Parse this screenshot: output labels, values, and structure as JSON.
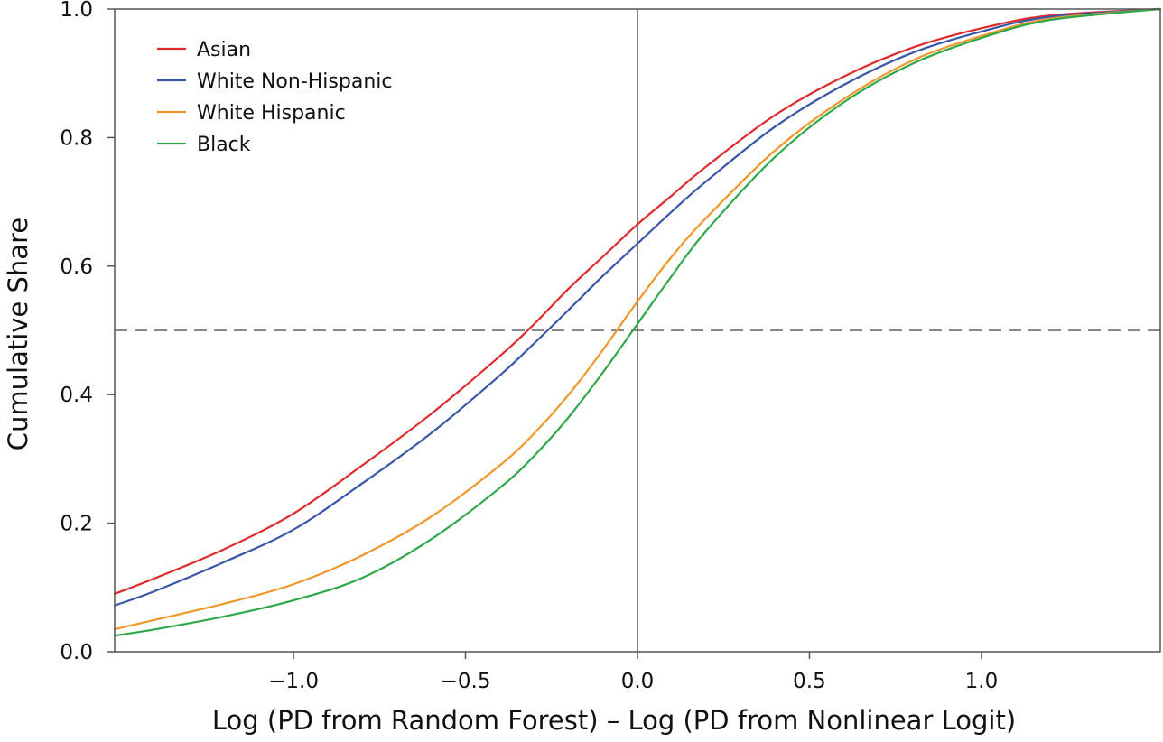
{
  "chart_data": {
    "type": "line",
    "title": "",
    "xlabel": "Log (PD from Random Forest) – Log (PD from Nonlinear Logit)",
    "ylabel": "Cumulative Share",
    "xlim": [
      -1.52,
      1.52
    ],
    "ylim": [
      0.0,
      1.0
    ],
    "x_ticks": [
      -1.0,
      -0.5,
      0.0,
      0.5,
      1.0
    ],
    "x_tick_labels": [
      "−1.0",
      "−0.5",
      "0.0",
      "0.5",
      "1.0"
    ],
    "y_ticks": [
      0.0,
      0.2,
      0.4,
      0.6,
      0.8,
      1.0
    ],
    "y_tick_labels": [
      "0.0",
      "0.2",
      "0.4",
      "0.6",
      "0.8",
      "1.0"
    ],
    "grid": false,
    "reference_lines": [
      {
        "orientation": "vertical",
        "value": 0.0,
        "style": "solid",
        "color": "#777777"
      },
      {
        "orientation": "horizontal",
        "value": 0.5,
        "style": "dashed",
        "color": "#777777"
      }
    ],
    "legend_position": "top-left",
    "series": [
      {
        "name": "Asian",
        "color": "#e02a2a",
        "x": [
          -1.52,
          -1.4,
          -1.2,
          -1.0,
          -0.8,
          -0.6,
          -0.4,
          -0.3,
          -0.2,
          -0.1,
          0.0,
          0.1,
          0.2,
          0.4,
          0.6,
          0.8,
          1.0,
          1.2,
          1.52
        ],
        "y": [
          0.09,
          0.115,
          0.16,
          0.215,
          0.29,
          0.37,
          0.46,
          0.51,
          0.565,
          0.615,
          0.665,
          0.71,
          0.755,
          0.835,
          0.895,
          0.94,
          0.97,
          0.99,
          1.0
        ]
      },
      {
        "name": "White Non-Hispanic",
        "color": "#3a56a8",
        "x": [
          -1.52,
          -1.4,
          -1.2,
          -1.0,
          -0.8,
          -0.6,
          -0.4,
          -0.3,
          -0.2,
          -0.1,
          0.0,
          0.1,
          0.2,
          0.4,
          0.6,
          0.8,
          1.0,
          1.2,
          1.52
        ],
        "y": [
          0.072,
          0.095,
          0.14,
          0.19,
          0.262,
          0.34,
          0.43,
          0.48,
          0.532,
          0.585,
          0.635,
          0.685,
          0.732,
          0.817,
          0.882,
          0.932,
          0.965,
          0.988,
          1.0
        ]
      },
      {
        "name": "White Hispanic",
        "color": "#f0962a",
        "x": [
          -1.52,
          -1.4,
          -1.2,
          -1.0,
          -0.8,
          -0.6,
          -0.4,
          -0.3,
          -0.2,
          -0.1,
          0.0,
          0.1,
          0.2,
          0.4,
          0.6,
          0.8,
          1.0,
          1.2,
          1.52
        ],
        "y": [
          0.035,
          0.05,
          0.075,
          0.105,
          0.15,
          0.21,
          0.29,
          0.34,
          0.4,
          0.47,
          0.545,
          0.615,
          0.675,
          0.78,
          0.86,
          0.92,
          0.958,
          0.985,
          1.0
        ]
      },
      {
        "name": "Black",
        "color": "#2fa84a",
        "x": [
          -1.52,
          -1.4,
          -1.2,
          -1.0,
          -0.8,
          -0.6,
          -0.4,
          -0.3,
          -0.2,
          -0.1,
          0.0,
          0.1,
          0.2,
          0.4,
          0.6,
          0.8,
          1.0,
          1.2,
          1.52
        ],
        "y": [
          0.025,
          0.035,
          0.055,
          0.08,
          0.115,
          0.175,
          0.255,
          0.305,
          0.365,
          0.435,
          0.51,
          0.585,
          0.655,
          0.77,
          0.855,
          0.915,
          0.955,
          0.983,
          1.0
        ]
      }
    ]
  }
}
